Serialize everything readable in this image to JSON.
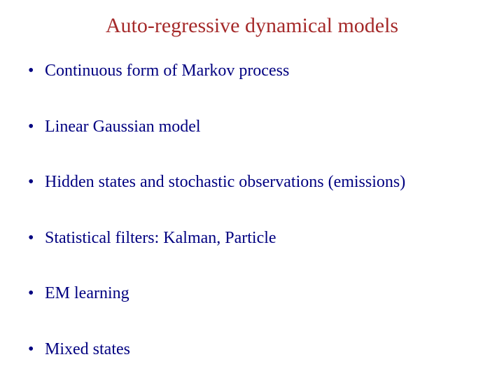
{
  "slide": {
    "title": "Auto-regressive dynamical models",
    "title_color": "#a52a2a",
    "title_fontsize": 30,
    "bullet_color": "#000080",
    "bullet_fontsize": 24,
    "background_color": "#ffffff",
    "font_family": "Times New Roman",
    "bullets": [
      "Continuous form of Markov process",
      "Linear Gaussian model",
      "Hidden states and stochastic observations (emissions)",
      "Statistical filters: Kalman, Particle",
      "EM learning",
      "Mixed states"
    ]
  }
}
